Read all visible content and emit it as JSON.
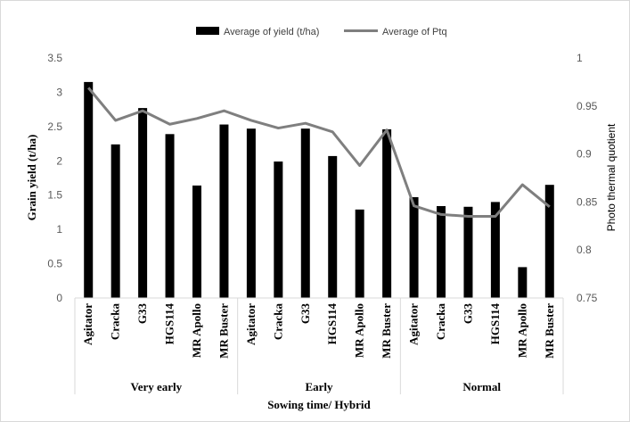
{
  "chart_data": {
    "type": "bar",
    "x_axis_title": "Sowing time/ Hybrid",
    "y_left_title": "Grain yield (t/ha)",
    "y_right_title": "Photo thermal quotient",
    "groups": [
      "Very early",
      "Early",
      "Normal"
    ],
    "categories": [
      "Agitator",
      "Cracka",
      "G33",
      "HGS114",
      "MR Apollo",
      "MR Buster",
      "Agitator",
      "Cracka",
      "G33",
      "HGS114",
      "MR Apollo",
      "MR Buster",
      "Agitator",
      "Cracka",
      "G33",
      "HGS114",
      "MR Apollo",
      "MR Buster"
    ],
    "series": [
      {
        "name": "Average of yield (t/ha)",
        "type": "bar",
        "axis": "left",
        "color": "#000000",
        "values": [
          3.15,
          2.24,
          2.77,
          2.39,
          1.64,
          2.53,
          2.47,
          1.99,
          2.47,
          2.07,
          1.29,
          2.46,
          1.47,
          1.34,
          1.33,
          1.4,
          0.45,
          1.65
        ]
      },
      {
        "name": "Average of Ptq",
        "type": "line",
        "axis": "right",
        "color": "#7f7f7f",
        "values": [
          0.969,
          0.935,
          0.945,
          0.931,
          0.937,
          0.945,
          0.935,
          0.927,
          0.932,
          0.923,
          0.888,
          0.925,
          0.846,
          0.837,
          0.835,
          0.835,
          0.868,
          0.845
        ]
      }
    ],
    "y_left": {
      "min": 0,
      "max": 3.5,
      "ticks": [
        "0",
        "0.5",
        "1",
        "1.5",
        "2",
        "2.5",
        "3",
        "3.5"
      ]
    },
    "y_right": {
      "min": 0.75,
      "max": 1.0,
      "ticks": [
        "0.75",
        "0.8",
        "0.85",
        "0.9",
        "0.95",
        "1"
      ]
    },
    "grid": false,
    "legend_position": "top"
  }
}
